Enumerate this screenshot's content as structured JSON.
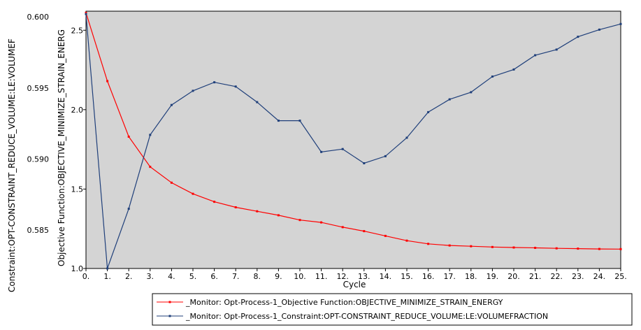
{
  "chart_data": {
    "type": "line",
    "xlabel": "Cycle",
    "y_left_label": "Constraint:OPT-CONSTRAINT_REDUCE_VOLUME:LE:VOLUMEF",
    "y_right_label": "Objective Function:OBJECTIVE_MINIMIZE_STRAIN_ENERG",
    "x_ticks": [
      "0.",
      "1.",
      "2.",
      "3.",
      "4.",
      "5.",
      "6.",
      "7.",
      "8.",
      "9.",
      "10.",
      "11.",
      "12.",
      "13.",
      "14.",
      "15.",
      "16.",
      "17.",
      "18.",
      "19.",
      "20.",
      "21.",
      "22.",
      "23.",
      "24.",
      "25."
    ],
    "y_left_ticks": [
      "0.600",
      "0.595",
      "0.590",
      "0.585"
    ],
    "y_right_ticks": [
      "2.5",
      "2.0",
      "1.5",
      "1.0"
    ],
    "x": [
      0,
      1,
      2,
      3,
      4,
      5,
      6,
      7,
      8,
      9,
      10,
      11,
      12,
      13,
      14,
      15,
      16,
      17,
      18,
      19,
      20,
      21,
      22,
      23,
      24,
      25
    ],
    "xlim": [
      0,
      25
    ],
    "y_left_lim": [
      0.5823,
      0.6004
    ],
    "y_right_lim": [
      1.0,
      2.62
    ],
    "grid": false,
    "legend_position": "bottom-right",
    "series": [
      {
        "name": "_Monitor: Opt-Process-1_Objective Function:OBJECTIVE_MINIMIZE_STRAIN_ENERGY",
        "color": "#ff0000",
        "axis": "right",
        "values": [
          2.61,
          2.18,
          1.83,
          1.64,
          1.54,
          1.47,
          1.42,
          1.385,
          1.36,
          1.335,
          1.305,
          1.29,
          1.26,
          1.235,
          1.205,
          1.175,
          1.155,
          1.145,
          1.14,
          1.135,
          1.132,
          1.13,
          1.127,
          1.125,
          1.123,
          1.122
        ]
      },
      {
        "name": "_Monitor: Opt-Process-1_Constraint:OPT-CONSTRAINT_REDUCE_VOLUME:LE:VOLUMEFRACTION",
        "color": "#1f3f7a",
        "axis": "left",
        "values": [
          0.6002,
          0.5823,
          0.5865,
          0.5917,
          0.5938,
          0.5948,
          0.5954,
          0.5951,
          0.594,
          0.5927,
          0.5927,
          0.5905,
          0.5907,
          0.5897,
          0.5902,
          0.5915,
          0.5933,
          0.5942,
          0.5947,
          0.5958,
          0.5963,
          0.5973,
          0.5977,
          0.5986,
          0.5991,
          0.5995
        ]
      }
    ]
  }
}
